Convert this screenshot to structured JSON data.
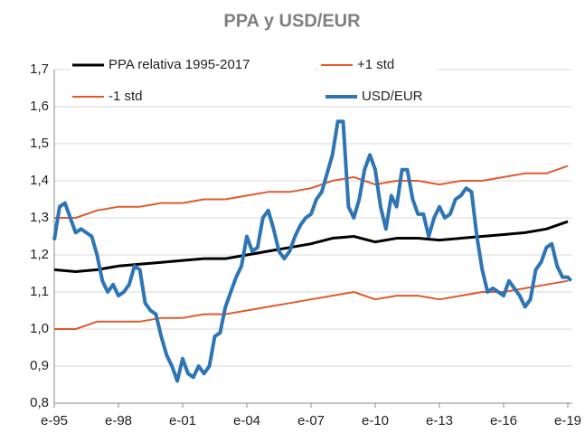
{
  "chart_data": {
    "type": "line",
    "title": "PPA y USD/EUR",
    "xlim": [
      1995,
      2019.2
    ],
    "xticks": [
      {
        "value": 1995,
        "label": "e-95"
      },
      {
        "value": 1998,
        "label": "e-98"
      },
      {
        "value": 2001,
        "label": "e-01"
      },
      {
        "value": 2004,
        "label": "e-04"
      },
      {
        "value": 2007,
        "label": "e-07"
      },
      {
        "value": 2010,
        "label": "e-10"
      },
      {
        "value": 2013,
        "label": "e-13"
      },
      {
        "value": 2016,
        "label": "e-16"
      },
      {
        "value": 2019,
        "label": "e-19"
      }
    ],
    "ylim": [
      0.8,
      1.7
    ],
    "yticks": [
      {
        "value": 0.8,
        "label": "0,8"
      },
      {
        "value": 0.9,
        "label": "0,9"
      },
      {
        "value": 1.0,
        "label": "1,0"
      },
      {
        "value": 1.1,
        "label": "1,1"
      },
      {
        "value": 1.2,
        "label": "1,2"
      },
      {
        "value": 1.3,
        "label": "1,3"
      },
      {
        "value": 1.4,
        "label": "1,4"
      },
      {
        "value": 1.5,
        "label": "1,5"
      },
      {
        "value": 1.6,
        "label": "1,6"
      },
      {
        "value": 1.7,
        "label": "1,7"
      }
    ],
    "grid": true,
    "series": [
      {
        "name": "PPA relativa 1995-2017",
        "color": "#000000",
        "width": 3,
        "x": [
          1995,
          1996,
          1997,
          1998,
          1999,
          2000,
          2001,
          2002,
          2003,
          2004,
          2005,
          2006,
          2007,
          2008,
          2009,
          2010,
          2011,
          2012,
          2013,
          2014,
          2015,
          2016,
          2017,
          2018,
          2019
        ],
        "values": [
          1.16,
          1.155,
          1.16,
          1.17,
          1.175,
          1.18,
          1.185,
          1.19,
          1.19,
          1.2,
          1.21,
          1.22,
          1.23,
          1.245,
          1.25,
          1.235,
          1.245,
          1.245,
          1.24,
          1.245,
          1.25,
          1.255,
          1.26,
          1.27,
          1.29
        ]
      },
      {
        "name": "+1 std",
        "color": "#e05a2b",
        "width": 2,
        "x": [
          1995,
          1996,
          1997,
          1998,
          1999,
          2000,
          2001,
          2002,
          2003,
          2004,
          2005,
          2006,
          2007,
          2008,
          2009,
          2010,
          2011,
          2012,
          2013,
          2014,
          2015,
          2016,
          2017,
          2018,
          2019
        ],
        "values": [
          1.3,
          1.3,
          1.32,
          1.33,
          1.33,
          1.34,
          1.34,
          1.35,
          1.35,
          1.36,
          1.37,
          1.37,
          1.38,
          1.4,
          1.41,
          1.39,
          1.4,
          1.4,
          1.39,
          1.4,
          1.4,
          1.41,
          1.42,
          1.42,
          1.44
        ]
      },
      {
        "name": "-1 std",
        "color": "#e05a2b",
        "width": 2,
        "x": [
          1995,
          1996,
          1997,
          1998,
          1999,
          2000,
          2001,
          2002,
          2003,
          2004,
          2005,
          2006,
          2007,
          2008,
          2009,
          2010,
          2011,
          2012,
          2013,
          2014,
          2015,
          2016,
          2017,
          2018,
          2019
        ],
        "values": [
          1.0,
          1.0,
          1.02,
          1.02,
          1.02,
          1.03,
          1.03,
          1.04,
          1.04,
          1.05,
          1.06,
          1.07,
          1.08,
          1.09,
          1.1,
          1.08,
          1.09,
          1.09,
          1.08,
          1.09,
          1.1,
          1.1,
          1.11,
          1.12,
          1.13
        ]
      },
      {
        "name": "USD/EUR",
        "color": "#2e75b6",
        "width": 4,
        "x": [
          1995,
          1995.25,
          1995.5,
          1995.75,
          1996,
          1996.25,
          1996.5,
          1996.75,
          1997,
          1997.25,
          1997.5,
          1997.75,
          1998,
          1998.25,
          1998.5,
          1998.75,
          1999,
          1999.25,
          1999.5,
          1999.75,
          2000,
          2000.25,
          2000.5,
          2000.75,
          2001,
          2001.25,
          2001.5,
          2001.75,
          2002,
          2002.25,
          2002.5,
          2002.75,
          2003,
          2003.25,
          2003.5,
          2003.75,
          2004,
          2004.25,
          2004.5,
          2004.75,
          2005,
          2005.25,
          2005.5,
          2005.75,
          2006,
          2006.25,
          2006.5,
          2006.75,
          2007,
          2007.25,
          2007.5,
          2007.75,
          2008,
          2008.25,
          2008.5,
          2008.75,
          2009,
          2009.25,
          2009.5,
          2009.75,
          2010,
          2010.25,
          2010.5,
          2010.75,
          2011,
          2011.25,
          2011.5,
          2011.75,
          2012,
          2012.25,
          2012.5,
          2012.75,
          2013,
          2013.25,
          2013.5,
          2013.75,
          2014,
          2014.25,
          2014.5,
          2014.75,
          2015,
          2015.25,
          2015.5,
          2015.75,
          2016,
          2016.25,
          2016.5,
          2016.75,
          2017,
          2017.25,
          2017.5,
          2017.75,
          2018,
          2018.25,
          2018.5,
          2018.75,
          2019,
          2019.15
        ],
        "values": [
          1.24,
          1.33,
          1.34,
          1.3,
          1.26,
          1.27,
          1.26,
          1.25,
          1.2,
          1.13,
          1.1,
          1.12,
          1.09,
          1.1,
          1.12,
          1.17,
          1.16,
          1.07,
          1.05,
          1.04,
          0.98,
          0.93,
          0.9,
          0.86,
          0.92,
          0.88,
          0.87,
          0.9,
          0.88,
          0.9,
          0.98,
          0.99,
          1.06,
          1.1,
          1.14,
          1.17,
          1.25,
          1.21,
          1.22,
          1.3,
          1.32,
          1.27,
          1.21,
          1.19,
          1.21,
          1.25,
          1.28,
          1.3,
          1.31,
          1.35,
          1.37,
          1.42,
          1.47,
          1.56,
          1.56,
          1.33,
          1.3,
          1.35,
          1.43,
          1.47,
          1.43,
          1.33,
          1.27,
          1.36,
          1.33,
          1.43,
          1.43,
          1.35,
          1.31,
          1.31,
          1.25,
          1.3,
          1.33,
          1.3,
          1.31,
          1.35,
          1.36,
          1.38,
          1.37,
          1.25,
          1.16,
          1.1,
          1.11,
          1.1,
          1.09,
          1.13,
          1.11,
          1.09,
          1.06,
          1.08,
          1.16,
          1.18,
          1.22,
          1.23,
          1.17,
          1.14,
          1.14,
          1.13
        ]
      }
    ]
  }
}
